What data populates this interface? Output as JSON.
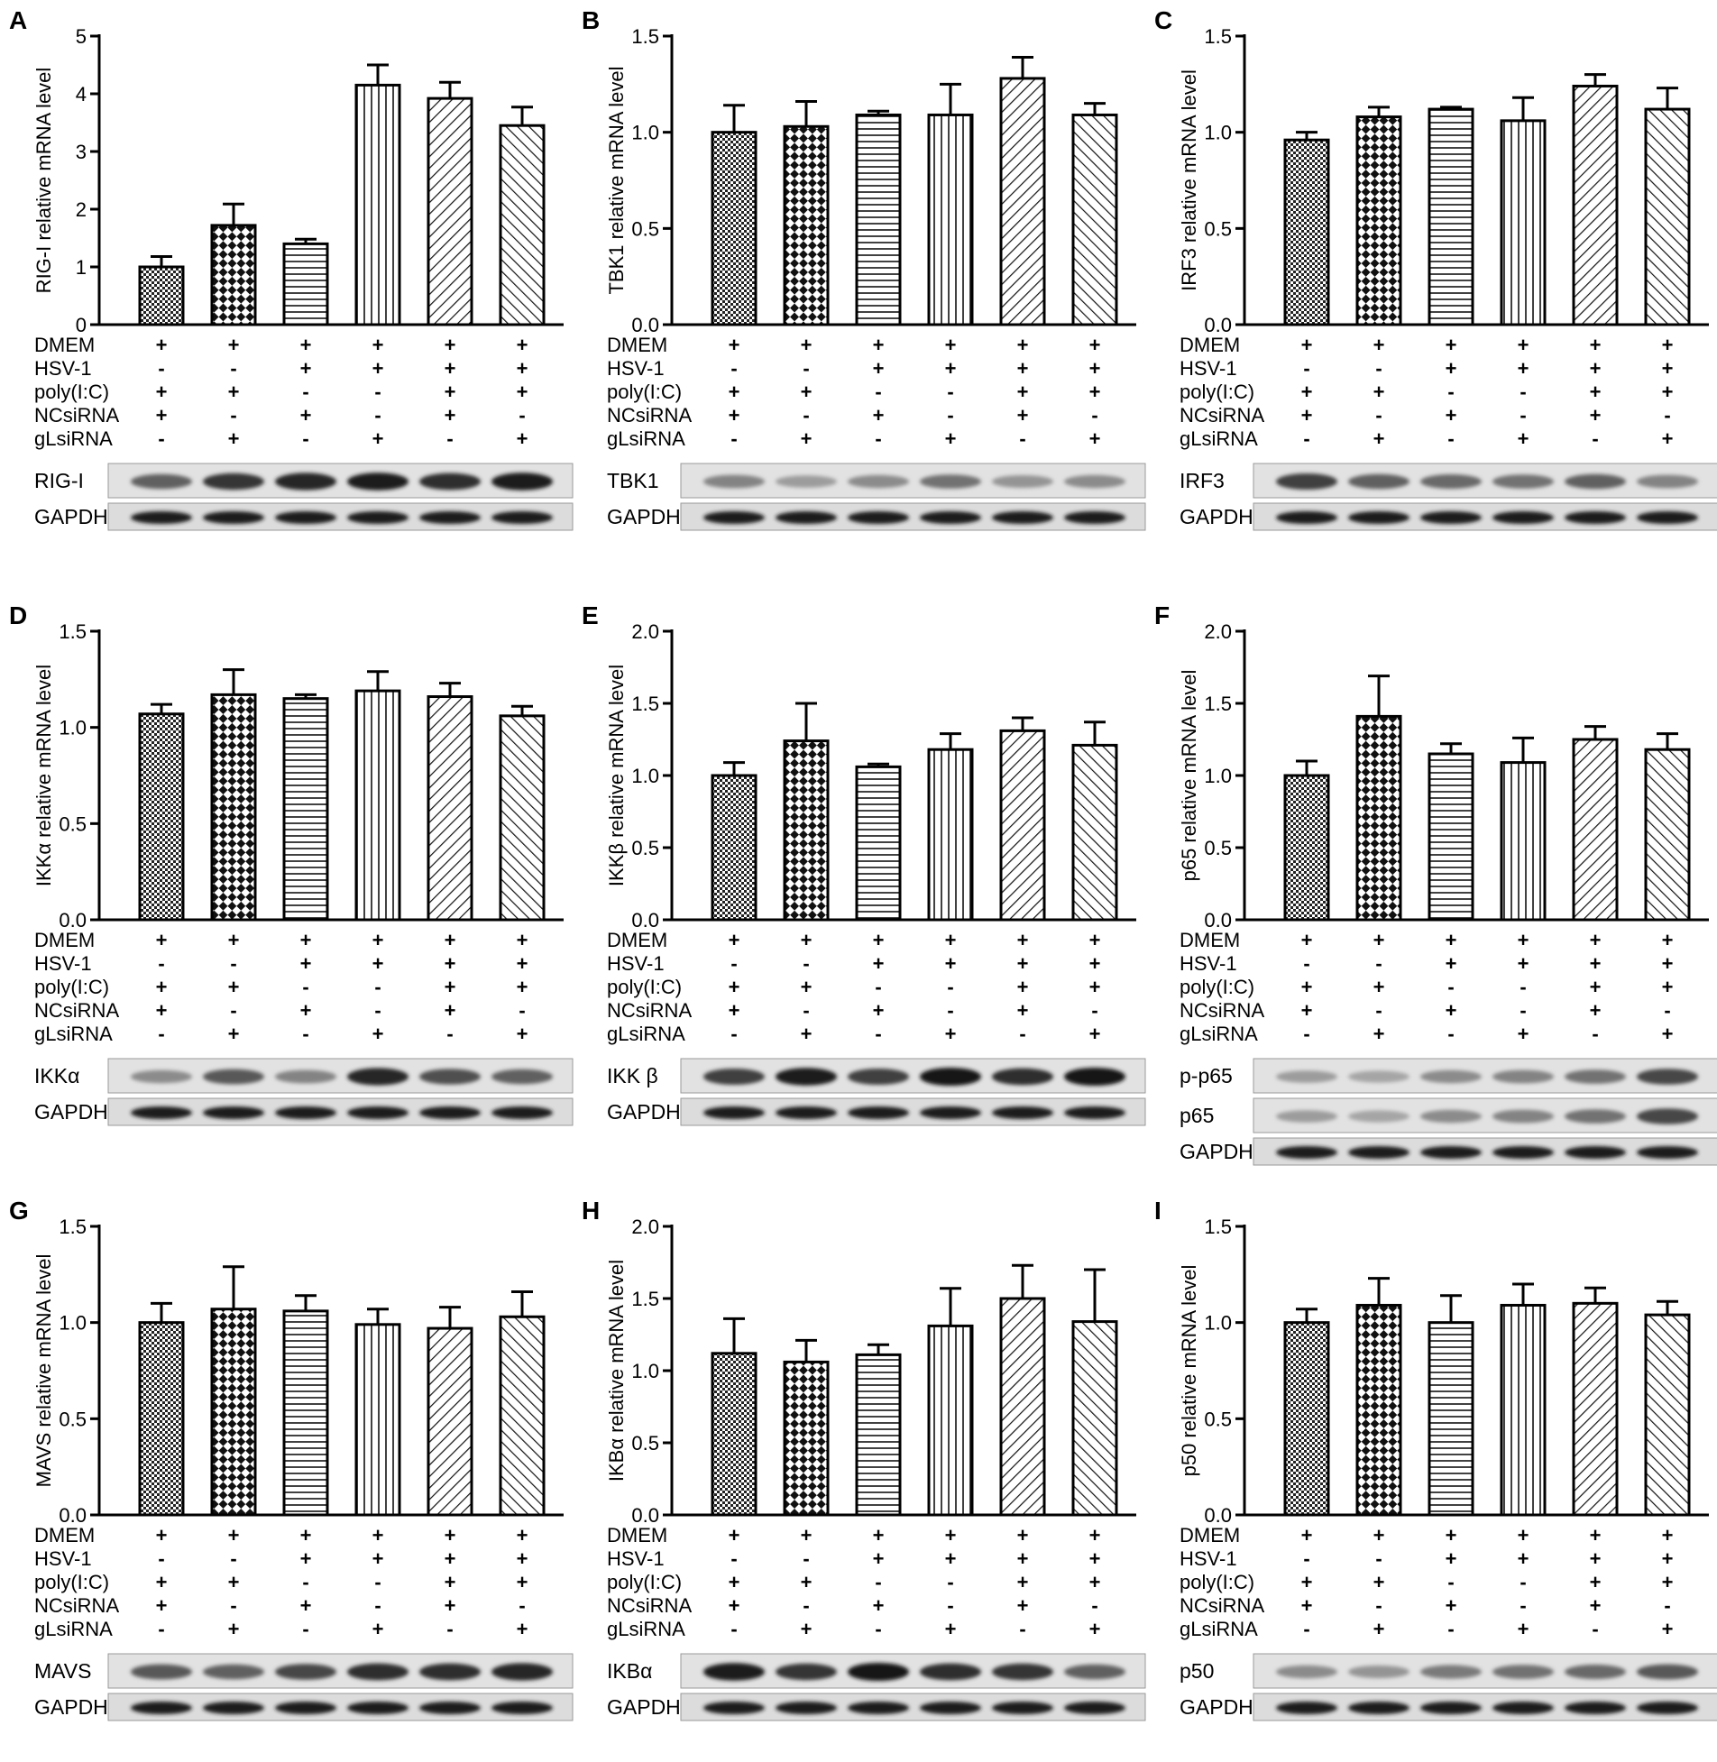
{
  "chart_data": [
    {
      "panel": "A",
      "type": "bar",
      "ylabel": "RIG-I relative mRNA level",
      "ylim": [
        0,
        5
      ],
      "ticks": [
        "0",
        "1",
        "2",
        "3",
        "4",
        "5"
      ],
      "values": [
        1.0,
        1.72,
        1.4,
        4.15,
        3.92,
        3.45
      ],
      "errors": [
        0.18,
        0.37,
        0.08,
        0.35,
        0.28,
        0.32
      ],
      "blots": [
        "RIG-I",
        "GAPDH"
      ]
    },
    {
      "panel": "B",
      "type": "bar",
      "ylabel": "TBK1 relative mRNA level",
      "ylim": [
        0,
        1.5
      ],
      "ticks": [
        "0.0",
        "0.5",
        "1.0",
        "1.5"
      ],
      "values": [
        1.0,
        1.03,
        1.09,
        1.09,
        1.28,
        1.09
      ],
      "errors": [
        0.14,
        0.13,
        0.02,
        0.16,
        0.11,
        0.06
      ],
      "blots": [
        "TBK1",
        "GAPDH"
      ]
    },
    {
      "panel": "C",
      "type": "bar",
      "ylabel": "IRF3 relative mRNA level",
      "ylim": [
        0,
        1.5
      ],
      "ticks": [
        "0.0",
        "0.5",
        "1.0",
        "1.5"
      ],
      "values": [
        0.96,
        1.08,
        1.12,
        1.06,
        1.24,
        1.12
      ],
      "errors": [
        0.04,
        0.05,
        0.01,
        0.12,
        0.06,
        0.11
      ],
      "blots": [
        "IRF3",
        "GAPDH"
      ]
    },
    {
      "panel": "D",
      "type": "bar",
      "ylabel": "IKKα relative mRNA level",
      "ylim": [
        0,
        1.5
      ],
      "ticks": [
        "0.0",
        "0.5",
        "1.0",
        "1.5"
      ],
      "values": [
        1.07,
        1.17,
        1.15,
        1.19,
        1.16,
        1.06
      ],
      "errors": [
        0.05,
        0.13,
        0.02,
        0.1,
        0.07,
        0.05
      ],
      "blots": [
        "IKKα",
        "GAPDH"
      ]
    },
    {
      "panel": "E",
      "type": "bar",
      "ylabel": "IKKβ relative mRNA level",
      "ylim": [
        0,
        2.0
      ],
      "ticks": [
        "0.0",
        "0.5",
        "1.0",
        "1.5",
        "2.0"
      ],
      "values": [
        1.0,
        1.24,
        1.06,
        1.18,
        1.31,
        1.21
      ],
      "errors": [
        0.09,
        0.26,
        0.02,
        0.11,
        0.09,
        0.16
      ],
      "blots": [
        "IKK β",
        "GAPDH"
      ]
    },
    {
      "panel": "F",
      "type": "bar",
      "ylabel": "p65 relative mRNA level",
      "ylim": [
        0,
        2.0
      ],
      "ticks": [
        "0.0",
        "0.5",
        "1.0",
        "1.5",
        "2.0"
      ],
      "values": [
        1.0,
        1.41,
        1.15,
        1.09,
        1.25,
        1.18
      ],
      "errors": [
        0.1,
        0.28,
        0.07,
        0.17,
        0.09,
        0.11
      ],
      "blots": [
        "p-p65",
        "p65",
        "GAPDH"
      ]
    },
    {
      "panel": "G",
      "type": "bar",
      "ylabel": "MAVS relative mRNA level",
      "ylim": [
        0,
        1.5
      ],
      "ticks": [
        "0.0",
        "0.5",
        "1.0",
        "1.5"
      ],
      "values": [
        1.0,
        1.07,
        1.06,
        0.99,
        0.97,
        1.03
      ],
      "errors": [
        0.1,
        0.22,
        0.08,
        0.08,
        0.11,
        0.13
      ],
      "blots": [
        "MAVS",
        "GAPDH"
      ]
    },
    {
      "panel": "H",
      "type": "bar",
      "ylabel": "IKBα relative mRNA level",
      "ylim": [
        0,
        2.0
      ],
      "ticks": [
        "0.0",
        "0.5",
        "1.0",
        "1.5",
        "2.0"
      ],
      "values": [
        1.12,
        1.06,
        1.11,
        1.31,
        1.5,
        1.34
      ],
      "errors": [
        0.24,
        0.15,
        0.07,
        0.26,
        0.23,
        0.36
      ],
      "blots": [
        "IKBα",
        "GAPDH"
      ]
    },
    {
      "panel": "I",
      "type": "bar",
      "ylabel": "p50 relative mRNA level",
      "ylim": [
        0,
        1.5
      ],
      "ticks": [
        "0.0",
        "0.5",
        "1.0",
        "1.5"
      ],
      "values": [
        1.0,
        1.09,
        1.0,
        1.09,
        1.1,
        1.04
      ],
      "errors": [
        0.07,
        0.14,
        0.14,
        0.11,
        0.08,
        0.07
      ],
      "blots": [
        "p50",
        "GAPDH"
      ]
    }
  ],
  "conditions": {
    "rows": [
      "DMEM",
      "HSV-1",
      "poly(I:C)",
      "NCsiRNA",
      "gLsiRNA"
    ],
    "signs": [
      [
        "+",
        "+",
        "+",
        "+",
        "+",
        "+"
      ],
      [
        "-",
        "-",
        "+",
        "+",
        "+",
        "+"
      ],
      [
        "+",
        "+",
        "-",
        "-",
        "+",
        "+"
      ],
      [
        "+",
        "-",
        "+",
        "-",
        "+",
        "-"
      ],
      [
        "-",
        "+",
        "-",
        "+",
        "-",
        "+"
      ]
    ]
  },
  "patterns": [
    "checker-fine",
    "checker-coarse",
    "horizontal",
    "vertical",
    "diagonal-right",
    "diagonal-left"
  ]
}
